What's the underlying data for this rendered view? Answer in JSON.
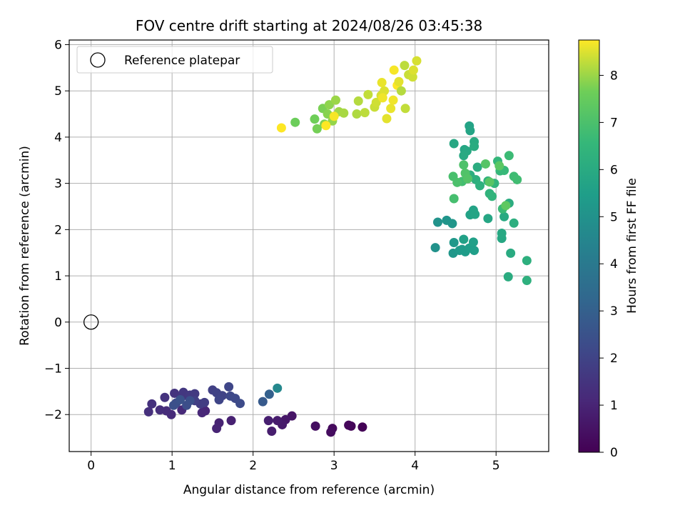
{
  "chart_data": {
    "type": "scatter",
    "title": "FOV centre drift starting at 2024/08/26 03:45:38",
    "xlabel": "Angular distance from reference (arcmin)",
    "ylabel": "Rotation from reference (arcmin)",
    "xlim": [
      -0.27,
      5.65
    ],
    "ylim": [
      -2.8,
      6.1
    ],
    "xticks": [
      0,
      1,
      2,
      3,
      4,
      5
    ],
    "xtick_labels": [
      "0",
      "1",
      "2",
      "3",
      "4",
      "5"
    ],
    "yticks": [
      -2,
      -1,
      0,
      1,
      2,
      3,
      4,
      5,
      6
    ],
    "ytick_labels": [
      "−2",
      "−1",
      "0",
      "1",
      "2",
      "3",
      "4",
      "5",
      "6"
    ],
    "grid": true,
    "legend": {
      "position": "top-left",
      "entries": [
        {
          "label": "Reference platepar",
          "marker": "open-circle",
          "x": 0,
          "y": 0
        }
      ]
    },
    "colorbar": {
      "label": "Hours from first FF file",
      "colormap": "viridis",
      "range": [
        0,
        8.75
      ],
      "ticks": [
        0,
        1,
        2,
        3,
        4,
        5,
        6,
        7,
        8
      ],
      "tick_labels": [
        "0",
        "1",
        "2",
        "3",
        "4",
        "5",
        "6",
        "7",
        "8"
      ]
    },
    "colors": {
      "reference_marker": "#000000",
      "grid": "#b0b0b0",
      "axes": "#000000"
    },
    "points": [
      [
        3.35,
        -2.27,
        0.05
      ],
      [
        3.21,
        -2.25,
        0.12
      ],
      [
        3.18,
        -2.23,
        0.18
      ],
      [
        2.98,
        -2.3,
        0.25
      ],
      [
        2.96,
        -2.38,
        0.32
      ],
      [
        2.77,
        -2.25,
        0.4
      ],
      [
        2.48,
        -2.03,
        0.55
      ],
      [
        2.4,
        -2.11,
        0.62
      ],
      [
        2.36,
        -2.22,
        0.7
      ],
      [
        2.3,
        -2.13,
        0.75
      ],
      [
        2.23,
        -2.36,
        0.8
      ],
      [
        2.19,
        -2.13,
        0.85
      ],
      [
        1.73,
        -2.13,
        0.9
      ],
      [
        1.58,
        -2.18,
        0.95
      ],
      [
        1.55,
        -2.3,
        1.0
      ],
      [
        1.41,
        -1.92,
        1.05
      ],
      [
        1.37,
        -1.96,
        1.1
      ],
      [
        1.12,
        -1.9,
        1.15
      ],
      [
        0.99,
        -2.0,
        1.2
      ],
      [
        0.93,
        -1.92,
        1.25
      ],
      [
        0.85,
        -1.9,
        1.3
      ],
      [
        0.71,
        -1.94,
        1.35
      ],
      [
        0.75,
        -1.77,
        1.4
      ],
      [
        0.91,
        -1.63,
        1.45
      ],
      [
        1.03,
        -1.54,
        1.5
      ],
      [
        1.13,
        -1.6,
        1.55
      ],
      [
        1.14,
        -1.52,
        1.6
      ],
      [
        1.22,
        -1.58,
        1.65
      ],
      [
        1.28,
        -1.55,
        1.7
      ],
      [
        1.35,
        -1.77,
        1.75
      ],
      [
        1.4,
        -1.74,
        1.8
      ],
      [
        1.28,
        -1.7,
        1.85
      ],
      [
        1.5,
        -1.47,
        1.9
      ],
      [
        1.55,
        -1.53,
        1.95
      ],
      [
        1.62,
        -1.59,
        2.0
      ],
      [
        1.58,
        -1.68,
        2.05
      ],
      [
        1.7,
        -1.4,
        2.1
      ],
      [
        1.72,
        -1.6,
        2.15
      ],
      [
        1.78,
        -1.65,
        2.2
      ],
      [
        1.84,
        -1.76,
        2.25
      ],
      [
        1.05,
        -1.75,
        2.3
      ],
      [
        1.18,
        -1.8,
        2.35
      ],
      [
        1.22,
        -1.7,
        2.4
      ],
      [
        1.02,
        -1.8,
        2.45
      ],
      [
        1.1,
        -1.68,
        2.5
      ],
      [
        2.12,
        -1.72,
        2.8
      ],
      [
        2.2,
        -1.56,
        3.0
      ],
      [
        2.3,
        -1.43,
        4.6
      ],
      [
        4.25,
        1.61,
        5.0
      ],
      [
        4.28,
        2.16,
        5.05
      ],
      [
        4.39,
        2.2,
        5.1
      ],
      [
        4.46,
        2.13,
        5.15
      ],
      [
        4.47,
        1.49,
        5.2
      ],
      [
        4.48,
        1.72,
        5.25
      ],
      [
        4.55,
        1.55,
        5.3
      ],
      [
        4.58,
        1.57,
        5.35
      ],
      [
        4.62,
        1.52,
        5.4
      ],
      [
        4.67,
        1.6,
        5.45
      ],
      [
        4.73,
        1.55,
        5.5
      ],
      [
        4.72,
        1.73,
        5.55
      ],
      [
        4.6,
        1.79,
        5.6
      ],
      [
        4.68,
        2.32,
        5.65
      ],
      [
        4.72,
        2.42,
        5.7
      ],
      [
        4.74,
        2.33,
        5.75
      ],
      [
        4.9,
        2.24,
        5.8
      ],
      [
        5.07,
        1.81,
        5.85
      ],
      [
        5.07,
        1.92,
        5.9
      ],
      [
        5.1,
        2.28,
        5.95
      ],
      [
        5.18,
        1.49,
        6.0
      ],
      [
        5.15,
        0.98,
        6.05
      ],
      [
        5.16,
        2.57,
        6.1
      ],
      [
        5.22,
        2.14,
        6.15
      ],
      [
        5.38,
        1.33,
        6.2
      ],
      [
        5.38,
        0.9,
        6.25
      ],
      [
        4.67,
        4.24,
        5.7
      ],
      [
        4.68,
        4.14,
        5.75
      ],
      [
        4.61,
        3.73,
        5.8
      ],
      [
        4.48,
        3.86,
        5.85
      ],
      [
        4.64,
        3.7,
        5.9
      ],
      [
        4.6,
        3.6,
        5.95
      ],
      [
        4.73,
        3.9,
        6.0
      ],
      [
        4.73,
        3.8,
        6.05
      ],
      [
        4.77,
        3.35,
        6.1
      ],
      [
        4.68,
        3.18,
        6.15
      ],
      [
        4.75,
        3.08,
        6.2
      ],
      [
        4.8,
        2.95,
        6.25
      ],
      [
        4.9,
        3.05,
        6.3
      ],
      [
        4.92,
        2.78,
        6.35
      ],
      [
        4.95,
        2.72,
        6.4
      ],
      [
        4.98,
        3.0,
        6.45
      ],
      [
        5.02,
        3.48,
        6.5
      ],
      [
        5.05,
        3.27,
        6.55
      ],
      [
        5.1,
        3.28,
        6.6
      ],
      [
        5.08,
        2.45,
        6.65
      ],
      [
        5.16,
        3.6,
        6.7
      ],
      [
        5.22,
        3.15,
        6.75
      ],
      [
        5.26,
        3.08,
        6.8
      ],
      [
        4.58,
        3.04,
        6.85
      ],
      [
        4.48,
        2.67,
        6.9
      ],
      [
        4.47,
        3.15,
        6.95
      ],
      [
        4.52,
        3.02,
        7.0
      ],
      [
        4.6,
        3.4,
        7.05
      ],
      [
        4.62,
        3.22,
        7.1
      ],
      [
        4.65,
        3.1,
        7.15
      ],
      [
        4.87,
        3.42,
        7.2
      ],
      [
        4.92,
        3.03,
        7.25
      ],
      [
        5.04,
        3.38,
        7.3
      ],
      [
        5.12,
        2.52,
        7.35
      ],
      [
        2.52,
        4.32,
        7.6
      ],
      [
        2.76,
        4.39,
        7.65
      ],
      [
        2.79,
        4.18,
        7.7
      ],
      [
        2.86,
        4.62,
        7.75
      ],
      [
        2.88,
        4.28,
        7.8
      ],
      [
        2.92,
        4.5,
        7.85
      ],
      [
        2.94,
        4.7,
        7.9
      ],
      [
        2.98,
        4.35,
        7.95
      ],
      [
        3.02,
        4.8,
        8.0
      ],
      [
        3.06,
        4.55,
        8.05
      ],
      [
        3.12,
        4.52,
        8.1
      ],
      [
        3.28,
        4.5,
        8.15
      ],
      [
        3.3,
        4.78,
        8.2
      ],
      [
        3.38,
        4.53,
        8.25
      ],
      [
        3.42,
        4.92,
        8.3
      ],
      [
        3.5,
        4.65,
        8.35
      ],
      [
        3.52,
        4.75,
        8.4
      ],
      [
        3.58,
        4.9,
        8.45
      ],
      [
        3.62,
        5.0,
        8.5
      ],
      [
        3.65,
        4.4,
        8.55
      ],
      [
        3.7,
        4.62,
        8.6
      ],
      [
        3.73,
        4.8,
        8.65
      ],
      [
        3.74,
        5.45,
        8.7
      ],
      [
        3.78,
        5.12,
        8.75
      ],
      [
        3.83,
        5.0,
        8.2
      ],
      [
        3.87,
        5.55,
        8.25
      ],
      [
        3.88,
        4.62,
        8.3
      ],
      [
        3.92,
        5.35,
        8.35
      ],
      [
        3.97,
        5.3,
        8.4
      ],
      [
        4.02,
        5.65,
        8.45
      ],
      [
        3.98,
        5.45,
        8.5
      ],
      [
        3.8,
        5.2,
        8.55
      ],
      [
        3.59,
        5.18,
        8.6
      ],
      [
        3.6,
        4.85,
        8.65
      ],
      [
        3.0,
        4.45,
        8.7
      ],
      [
        2.9,
        4.25,
        8.75
      ],
      [
        2.35,
        4.2,
        8.75
      ]
    ]
  }
}
